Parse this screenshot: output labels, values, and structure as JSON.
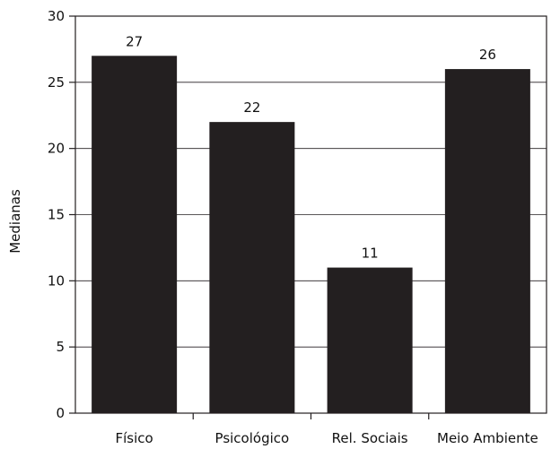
{
  "chart_data": {
    "type": "bar",
    "categories": [
      "Físico",
      "Psicológico",
      "Rel. Sociais",
      "Meio Ambiente"
    ],
    "values": [
      27,
      22,
      11,
      26
    ],
    "value_labels": [
      "27",
      "22",
      "11",
      "26"
    ],
    "ylabel": "Medianas",
    "ylim": [
      0,
      30
    ],
    "yticks": [
      0,
      5,
      10,
      15,
      20,
      25,
      30
    ],
    "grid": true,
    "bar_color": "#231f20",
    "frame_color": "#231f20"
  }
}
